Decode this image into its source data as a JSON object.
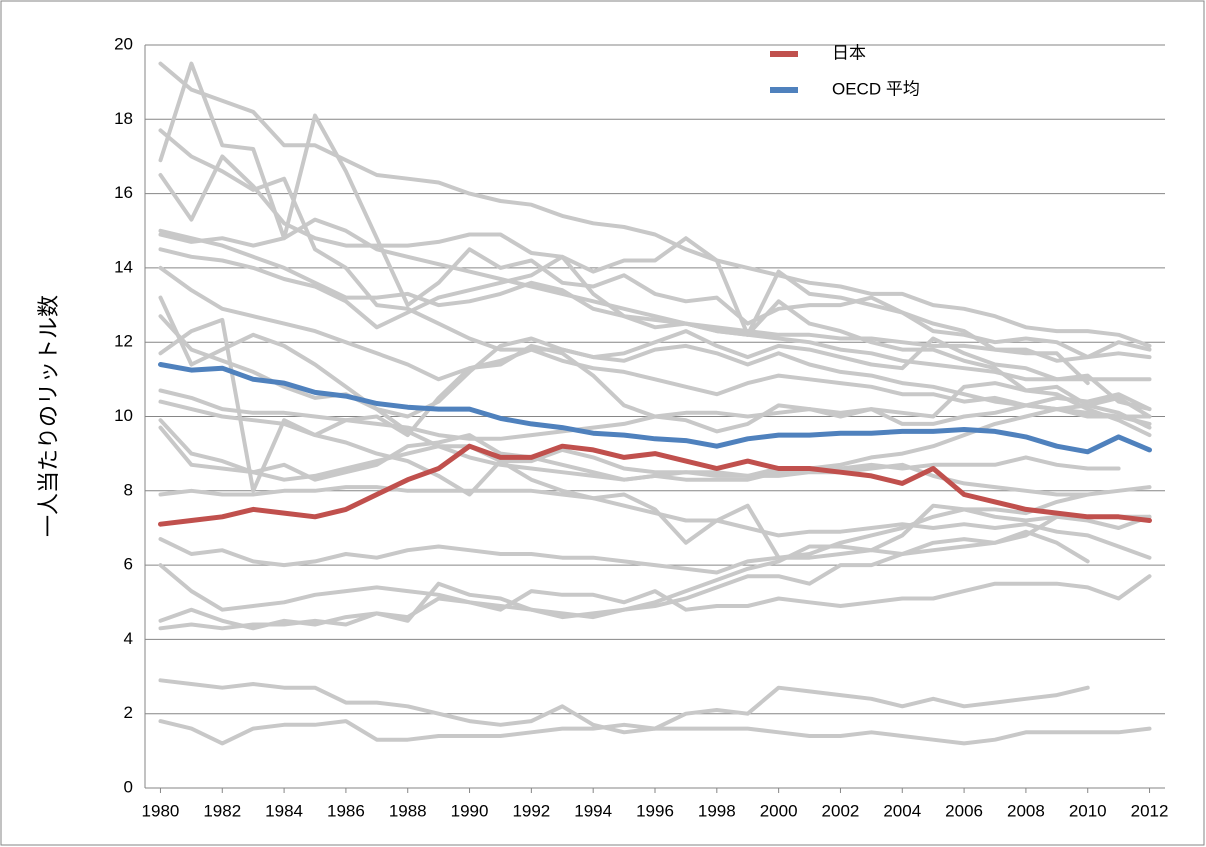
{
  "chart_data": {
    "type": "line",
    "y_label": "一人当たりのリットル数",
    "x": [
      1980,
      1981,
      1982,
      1983,
      1984,
      1985,
      1986,
      1987,
      1988,
      1989,
      1990,
      1991,
      1992,
      1993,
      1994,
      1995,
      1996,
      1997,
      1998,
      1999,
      2000,
      2001,
      2002,
      2003,
      2004,
      2005,
      2006,
      2007,
      2008,
      2009,
      2010,
      2011,
      2012
    ],
    "xlim": [
      1979.5,
      2012.5
    ],
    "xticks": [
      1980,
      1982,
      1984,
      1986,
      1988,
      1990,
      1992,
      1994,
      1996,
      1998,
      2000,
      2002,
      2004,
      2006,
      2008,
      2010,
      2012
    ],
    "ylim": [
      0,
      20
    ],
    "yticks": [
      0,
      2,
      4,
      6,
      8,
      10,
      12,
      14,
      16,
      18,
      20
    ],
    "grid": true,
    "legend": "top",
    "series": [
      {
        "color": "#c8c8c8",
        "values": [
          19.5,
          18.8,
          18.5,
          18.2,
          17.3,
          17.3,
          16.9,
          16.5,
          16.4,
          16.3,
          16.0,
          15.8,
          15.7,
          15.4,
          15.2,
          15.1,
          14.9,
          14.5,
          14.2,
          14.0,
          13.8,
          13.6,
          13.5,
          13.3,
          13.3,
          13.0,
          12.9,
          12.7,
          12.4,
          12.3,
          12.3,
          12.2,
          11.9
        ]
      },
      {
        "color": "#c8c8c8",
        "values": [
          16.9,
          19.5,
          17.3,
          17.2,
          14.8,
          18.1,
          16.6,
          14.8,
          13.0,
          13.6,
          14.5,
          14.0,
          14.2,
          13.6,
          13.5,
          13.8,
          13.3,
          13.1,
          13.2,
          12.5,
          12.9,
          13.0,
          13.0,
          13.2,
          12.8,
          12.3,
          12.2,
          12.0,
          12.1,
          12.0,
          11.6,
          11.7,
          11.6
        ]
      },
      {
        "color": "#c8c8c8",
        "values": [
          17.7,
          17.0,
          16.6,
          16.1,
          16.4,
          14.5,
          14.0,
          13.0,
          12.9,
          12.5,
          12.1,
          11.8,
          11.8,
          11.5,
          11.3,
          11.2,
          11.0,
          10.8,
          10.6,
          10.9,
          11.1,
          11.0,
          10.9,
          10.8,
          10.6,
          10.6,
          10.4,
          10.5,
          10.3,
          10.2,
          10.0,
          10.0,
          9.8
        ]
      },
      {
        "color": "#c8c8c8",
        "values": [
          16.5,
          15.3,
          17.0,
          16.2,
          15.2,
          14.8,
          14.6,
          14.6,
          14.6,
          14.7,
          14.9,
          14.9,
          14.4,
          14.3,
          13.9,
          14.2,
          14.2,
          14.8,
          14.2,
          12.2,
          13.9,
          13.3,
          13.2,
          13.0,
          12.8,
          12.5,
          12.3,
          11.8,
          11.7,
          11.7,
          10.9,
          null,
          null
        ]
      },
      {
        "color": "#c8c8c8",
        "values": [
          14.9,
          14.7,
          14.8,
          14.6,
          14.8,
          15.3,
          15.0,
          14.5,
          14.3,
          14.1,
          13.9,
          13.7,
          13.5,
          13.3,
          13.1,
          12.9,
          12.7,
          12.5,
          12.3,
          12.2,
          12.1,
          12.0,
          11.8,
          11.7,
          11.5,
          11.4,
          11.3,
          11.2,
          11.0,
          11.0,
          11.0,
          11.0,
          11.0
        ]
      },
      {
        "color": "#c8c8c8",
        "values": [
          14.5,
          14.3,
          14.2,
          14.0,
          13.7,
          13.5,
          13.1,
          12.4,
          12.8,
          13.2,
          13.4,
          13.6,
          13.8,
          14.3,
          13.3,
          12.7,
          12.4,
          12.5,
          12.3,
          12.2,
          13.1,
          12.5,
          12.3,
          12.0,
          11.8,
          11.8,
          11.5,
          11.3,
          10.7,
          10.6,
          10.2,
          9.9,
          9.5
        ]
      },
      {
        "color": "#c8c8c8",
        "values": [
          14.0,
          13.4,
          12.9,
          12.7,
          12.5,
          12.3,
          12.0,
          11.7,
          11.4,
          11.0,
          11.3,
          11.5,
          11.8,
          11.8,
          11.6,
          11.5,
          11.8,
          11.9,
          11.7,
          11.4,
          11.7,
          11.4,
          11.2,
          11.1,
          10.9,
          10.8,
          10.6,
          10.4,
          10.3,
          10.2,
          10.1,
          10.0,
          10.0
        ]
      },
      {
        "color": "#c8c8c8",
        "values": [
          13.2,
          11.4,
          11.8,
          12.2,
          11.9,
          11.4,
          10.8,
          10.2,
          9.6,
          9.2,
          8.9,
          8.7,
          8.6,
          8.5,
          8.4,
          8.3,
          8.4,
          8.3,
          8.3,
          8.3,
          8.5,
          8.6,
          8.7,
          8.9,
          9.0,
          9.2,
          9.5,
          9.8,
          10.0,
          10.2,
          10.3,
          10.5,
          10.0
        ]
      },
      {
        "color": "#c8c8c8",
        "values": [
          12.7,
          11.8,
          11.5,
          11.2,
          10.8,
          10.5,
          10.6,
          10.2,
          10.0,
          10.4,
          11.2,
          11.9,
          12.1,
          11.8,
          11.6,
          11.7,
          12.0,
          12.3,
          11.9,
          11.6,
          11.9,
          11.8,
          11.6,
          11.4,
          11.3,
          12.1,
          11.7,
          11.4,
          11.3,
          11.0,
          11.1,
          10.4,
          10.2
        ]
      },
      {
        "color": "#c8c8c8",
        "values": [
          11.7,
          12.3,
          12.6,
          8.0,
          9.9,
          9.5,
          9.9,
          10.0,
          9.5,
          10.5,
          11.3,
          11.4,
          11.9,
          11.7,
          11.1,
          10.3,
          10.0,
          9.9,
          9.6,
          9.8,
          10.3,
          10.2,
          10.1,
          10.2,
          10.1,
          10.0,
          10.8,
          10.9,
          10.7,
          10.8,
          10.3,
          10.1,
          9.7
        ]
      },
      {
        "color": "#c8c8c8",
        "values": [
          10.7,
          10.5,
          10.2,
          10.1,
          10.1,
          10.0,
          9.9,
          9.8,
          9.7,
          9.5,
          9.4,
          9.4,
          9.5,
          9.6,
          9.7,
          9.8,
          10.0,
          10.1,
          10.1,
          10.0,
          10.1,
          10.2,
          10.0,
          10.2,
          9.8,
          9.8,
          10.0,
          10.1,
          10.3,
          10.5,
          10.4,
          10.6,
          10.2
        ]
      },
      {
        "color": "#c8c8c8",
        "values": [
          10.4,
          10.2,
          10.0,
          9.9,
          9.8,
          9.5,
          9.3,
          9.0,
          8.8,
          8.4,
          7.9,
          8.8,
          8.8,
          9.1,
          8.9,
          8.6,
          8.5,
          8.5,
          8.4,
          8.4,
          8.6,
          8.6,
          8.6,
          8.7,
          8.6,
          8.7,
          8.7,
          8.7,
          8.9,
          8.7,
          8.6,
          8.6,
          null
        ]
      },
      {
        "color": "#c8c8c8",
        "values": [
          9.9,
          9.0,
          8.8,
          8.5,
          8.3,
          8.4,
          8.6,
          8.8,
          9.0,
          9.2,
          9.2,
          8.8,
          8.3,
          8.0,
          7.8,
          7.9,
          7.5,
          6.6,
          7.2,
          7.6,
          6.2,
          6.3,
          6.6,
          6.8,
          7.0,
          7.3,
          7.5,
          7.3,
          7.2,
          7.3,
          7.3,
          7.3,
          7.3
        ]
      },
      {
        "color": "#c8c8c8",
        "values": [
          9.7,
          8.7,
          8.6,
          8.5,
          8.7,
          8.3,
          8.5,
          8.7,
          9.2,
          9.3,
          9.5,
          9.0,
          8.9,
          8.7,
          8.5,
          8.3,
          8.4,
          8.5,
          8.5,
          8.4,
          8.4,
          8.5,
          8.5,
          8.6,
          8.7,
          8.4,
          8.2,
          8.1,
          8.0,
          7.9,
          7.9,
          8.0,
          8.1
        ]
      },
      {
        "color": "#c8c8c8",
        "values": [
          7.9,
          8.0,
          7.9,
          7.9,
          8.0,
          8.0,
          8.1,
          8.1,
          8.0,
          8.0,
          8.0,
          8.0,
          8.0,
          7.9,
          7.8,
          7.6,
          7.4,
          7.2,
          7.2,
          7.0,
          6.8,
          6.9,
          6.9,
          7.0,
          7.1,
          7.0,
          7.1,
          7.0,
          7.1,
          6.9,
          6.8,
          6.5,
          6.2
        ]
      },
      {
        "color": "#c8c8c8",
        "values": [
          6.7,
          6.3,
          6.4,
          6.1,
          6.0,
          6.1,
          6.3,
          6.2,
          6.4,
          6.5,
          6.4,
          6.3,
          6.3,
          6.2,
          6.2,
          6.1,
          6.0,
          5.9,
          5.8,
          6.1,
          6.2,
          6.2,
          6.3,
          6.4,
          6.3,
          6.6,
          6.7,
          6.6,
          6.9,
          6.6,
          6.1,
          null,
          null
        ]
      },
      {
        "color": "#c8c8c8",
        "values": [
          6.0,
          5.3,
          4.8,
          4.9,
          5.0,
          5.2,
          5.3,
          5.4,
          5.3,
          5.2,
          5.0,
          4.9,
          4.8,
          4.7,
          4.6,
          4.8,
          5.0,
          5.3,
          5.6,
          5.9,
          6.1,
          6.5,
          6.5,
          6.4,
          6.8,
          7.6,
          7.5,
          7.5,
          7.4,
          7.7,
          7.9,
          null,
          null
        ]
      },
      {
        "color": "#c8c8c8",
        "values": [
          4.5,
          4.8,
          4.5,
          4.3,
          4.5,
          4.4,
          4.6,
          4.7,
          4.5,
          5.5,
          5.2,
          5.1,
          4.8,
          4.6,
          4.7,
          4.8,
          4.9,
          5.1,
          5.4,
          5.7,
          5.7,
          5.5,
          6.0,
          6.0,
          6.3,
          6.4,
          6.5,
          6.6,
          6.8,
          7.3,
          7.2,
          7.0,
          7.3
        ]
      },
      {
        "color": "#c8c8c8",
        "values": [
          4.3,
          4.4,
          4.3,
          4.4,
          4.4,
          4.5,
          4.4,
          4.7,
          4.6,
          5.1,
          5.0,
          4.8,
          5.3,
          5.2,
          5.2,
          5.0,
          5.3,
          4.8,
          4.9,
          4.9,
          5.1,
          5.0,
          4.9,
          5.0,
          5.1,
          5.1,
          5.3,
          5.5,
          5.5,
          5.5,
          5.4,
          5.1,
          5.7
        ]
      },
      {
        "color": "#c8c8c8",
        "values": [
          2.9,
          2.8,
          2.7,
          2.8,
          2.7,
          2.7,
          2.3,
          2.3,
          2.2,
          2.0,
          1.8,
          1.7,
          1.8,
          2.2,
          1.7,
          1.5,
          1.6,
          2.0,
          2.1,
          2.0,
          2.7,
          2.6,
          2.5,
          2.4,
          2.2,
          2.4,
          2.2,
          2.3,
          2.4,
          2.5,
          2.7,
          null,
          null
        ]
      },
      {
        "color": "#c8c8c8",
        "values": [
          1.8,
          1.6,
          1.2,
          1.6,
          1.7,
          1.7,
          1.8,
          1.3,
          1.3,
          1.4,
          1.4,
          1.4,
          1.5,
          1.6,
          1.6,
          1.7,
          1.6,
          1.6,
          1.6,
          1.6,
          1.5,
          1.4,
          1.4,
          1.5,
          1.4,
          1.3,
          1.2,
          1.3,
          1.5,
          1.5,
          1.5,
          1.5,
          1.6
        ]
      },
      {
        "color": "#c8c8c8",
        "values": [
          15.0,
          14.8,
          14.6,
          14.3,
          14.0,
          13.6,
          13.2,
          13.2,
          13.3,
          13.0,
          13.1,
          13.3,
          13.6,
          13.4,
          12.9,
          12.7,
          12.6,
          12.5,
          12.4,
          12.3,
          12.2,
          12.2,
          12.1,
          12.1,
          12.0,
          11.9,
          11.9,
          11.8,
          11.8,
          11.5,
          11.6,
          12.0,
          11.8
        ]
      },
      {
        "name": "日本",
        "color": "#c0504d",
        "values": [
          7.1,
          7.2,
          7.3,
          7.5,
          7.4,
          7.3,
          7.5,
          7.9,
          8.3,
          8.6,
          9.2,
          8.9,
          8.9,
          9.2,
          9.1,
          8.9,
          9.0,
          8.8,
          8.6,
          8.8,
          8.6,
          8.6,
          8.5,
          8.4,
          8.2,
          8.6,
          7.9,
          7.7,
          7.5,
          7.4,
          7.3,
          7.3,
          7.2
        ]
      },
      {
        "name": "OECD 平均",
        "color": "#4f81bd",
        "values": [
          11.4,
          11.25,
          11.3,
          11.0,
          10.9,
          10.65,
          10.55,
          10.35,
          10.25,
          10.2,
          10.2,
          9.95,
          9.8,
          9.7,
          9.55,
          9.5,
          9.4,
          9.35,
          9.2,
          9.4,
          9.5,
          9.5,
          9.55,
          9.55,
          9.6,
          9.6,
          9.65,
          9.6,
          9.45,
          9.2,
          9.05,
          9.45,
          9.1
        ]
      }
    ]
  }
}
